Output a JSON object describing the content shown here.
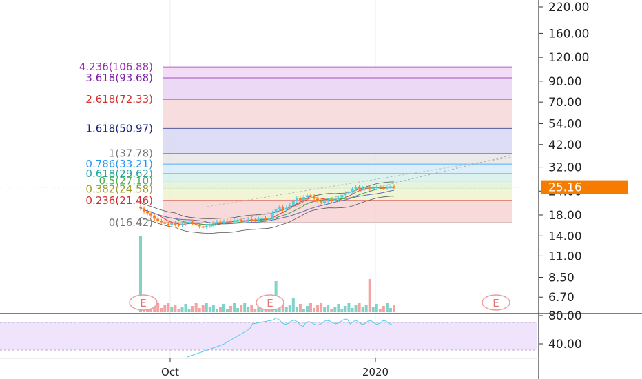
{
  "chart_data": {
    "type": "candlestick",
    "y_axis": {
      "scale": "log",
      "ticks": [
        "220.00",
        "160.00",
        "120.00",
        "90.00",
        "70.00",
        "54.00",
        "42.00",
        "32.00",
        "24.00",
        "18.00",
        "14.00",
        "11.00",
        "8.50",
        "6.70"
      ],
      "tick_values": [
        220,
        160,
        120,
        90,
        70,
        54,
        42,
        32,
        24,
        18,
        14,
        11,
        8.5,
        6.7
      ],
      "range": [
        6.0,
        240
      ]
    },
    "x_axis": {
      "ticks": [
        "Oct",
        "2020"
      ]
    },
    "last_price": {
      "label": "25.16",
      "value": 25.16,
      "color": "#f57c00"
    },
    "fibonacci_levels": [
      {
        "label": "4.236(106.88)",
        "price": 106.88,
        "color": "#9c27b0",
        "fill": "#f3d6f5"
      },
      {
        "label": "3.618(93.68)",
        "price": 93.68,
        "color": "#7b1fa2",
        "fill": "#e8d2f5"
      },
      {
        "label": "2.618(72.33)",
        "price": 72.33,
        "color": "#d32f2f",
        "fill": "#f7d7d9"
      },
      {
        "label": "1.618(50.97)",
        "price": 50.97,
        "color": "#1a237e",
        "fill": "#d7d8f5"
      },
      {
        "label": "1(37.78)",
        "price": 37.78,
        "color": "#757575",
        "fill": "#e6e6e6"
      },
      {
        "label": "0.786(33.21)",
        "price": 33.21,
        "color": "#2196f3",
        "fill": "#d5ebf8"
      },
      {
        "label": "0.618(29.62)",
        "price": 29.62,
        "color": "#26a69a",
        "fill": "#d5f0ec"
      },
      {
        "label": "0.5(27.10)",
        "price": 27.1,
        "color": "#4caf50",
        "fill": "#e0f2d8"
      },
      {
        "label": "0.382(24.58)",
        "price": 24.58,
        "color": "#9e9d24",
        "fill": "#f0f2cf"
      },
      {
        "label": "0.236(21.46)",
        "price": 21.46,
        "color": "#d32f2f",
        "fill": "#f7d3d3"
      },
      {
        "label": "0(16.42)",
        "price": 16.42,
        "color": "#757575",
        "fill": "#f7d3d3"
      }
    ],
    "earnings_markers": [
      {
        "label": "E"
      },
      {
        "label": "E"
      },
      {
        "label": "E"
      }
    ],
    "price_series": {
      "closes": [
        19.5,
        18.8,
        18.4,
        17.9,
        17.2,
        16.8,
        16.5,
        16.2,
        16.0,
        16.3,
        16.1,
        15.9,
        16.2,
        16.4,
        16.6,
        16.3,
        16.0,
        15.7,
        15.5,
        15.8,
        16.1,
        16.4,
        16.6,
        16.5,
        16.7,
        16.8,
        16.6,
        16.9,
        17.0,
        16.8,
        16.9,
        17.1,
        17.0,
        16.9,
        17.2,
        17.4,
        17.1,
        17.3,
        18.5,
        19.4,
        19.8,
        19.2,
        19.6,
        20.4,
        21.3,
        22.0,
        21.6,
        22.3,
        22.8,
        22.5,
        21.9,
        21.4,
        21.0,
        21.2,
        21.6,
        21.3,
        21.7,
        22.2,
        22.9,
        23.4,
        23.9,
        24.6,
        25.1,
        24.8,
        24.9,
        25.2,
        24.7,
        24.9,
        25.3,
        25.0,
        24.9,
        25.2,
        25.4,
        25.16
      ]
    },
    "rsi": {
      "levels": [
        30,
        70
      ],
      "ticks": [
        "80.00",
        "40.00"
      ],
      "tick_values": [
        80,
        40
      ]
    }
  }
}
